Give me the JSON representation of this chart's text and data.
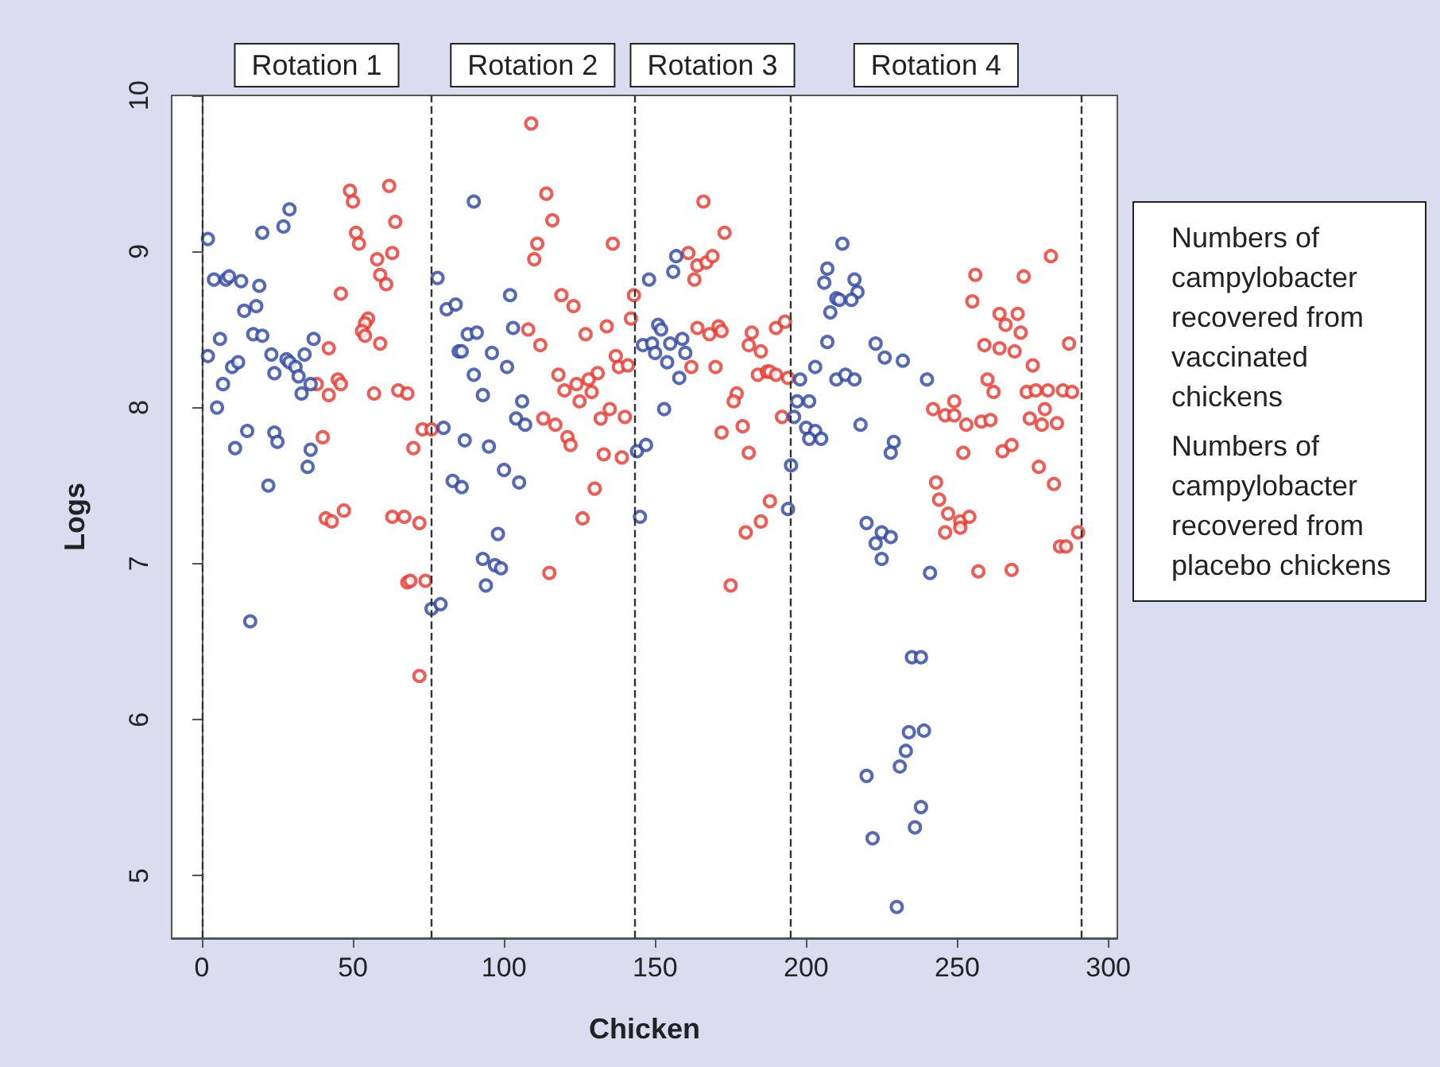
{
  "chart_data": {
    "type": "scatter",
    "xlabel": "Chicken",
    "ylabel": "Logs",
    "xlim": [
      -10,
      303
    ],
    "xticks": [
      0,
      50,
      100,
      150,
      200,
      250,
      300
    ],
    "ylim": [
      4.6,
      10
    ],
    "yticks": [
      5,
      6,
      7,
      8,
      9,
      10
    ],
    "grid": false,
    "legend": "right",
    "marker": "circle",
    "annotations": [
      "Rotation 1",
      "Rotation 2",
      "Rotation 3",
      "Rotation 4"
    ],
    "ref_lines": [
      {
        "axis": "x",
        "value": 0,
        "line_style": "dashed",
        "color": "#333333"
      },
      {
        "axis": "x",
        "value": 76,
        "line_style": "dashed",
        "color": "#333333"
      },
      {
        "axis": "x",
        "value": 143,
        "line_style": "dashed",
        "color": "#333333"
      },
      {
        "axis": "x",
        "value": 195,
        "line_style": "dashed",
        "color": "#333333"
      },
      {
        "axis": "x",
        "value": 291,
        "line_style": "dashed",
        "color": "#333333"
      }
    ],
    "series": [
      {
        "name": "Numbers of campylobacter recovered from vaccinated chickens",
        "color": "#e8352b",
        "x": [
          49,
          50,
          62,
          64,
          51,
          52,
          58,
          63,
          59,
          61,
          46,
          55,
          54,
          53,
          54,
          59,
          42,
          38,
          45,
          46,
          42,
          57,
          65,
          68,
          40,
          73,
          76,
          70,
          41,
          43,
          47,
          63,
          67,
          72,
          68,
          69,
          74,
          72,
          109,
          114,
          116,
          111,
          110,
          136,
          119,
          123,
          108,
          112,
          127,
          134,
          142,
          143,
          137,
          138,
          141,
          118,
          131,
          128,
          124,
          120,
          129,
          125,
          113,
          117,
          132,
          135,
          140,
          121,
          122,
          133,
          139,
          130,
          126,
          115,
          166,
          173,
          161,
          164,
          167,
          169,
          163,
          164,
          168,
          171,
          172,
          182,
          190,
          193,
          181,
          185,
          162,
          170,
          184,
          187,
          188,
          190,
          194,
          177,
          176,
          192,
          172,
          179,
          181,
          188,
          185,
          180,
          175,
          281,
          256,
          272,
          255,
          264,
          270,
          266,
          271,
          259,
          264,
          269,
          287,
          275,
          260,
          262,
          273,
          276,
          280,
          285,
          288,
          279,
          249,
          242,
          246,
          249,
          253,
          258,
          261,
          274,
          278,
          283,
          252,
          265,
          268,
          277,
          282,
          243,
          244,
          247,
          251,
          251,
          254,
          246,
          290,
          284,
          286,
          257,
          268
        ],
        "values": [
          9.39,
          9.32,
          9.42,
          9.19,
          9.12,
          9.05,
          8.95,
          8.99,
          8.85,
          8.79,
          8.73,
          8.57,
          8.54,
          8.49,
          8.46,
          8.41,
          8.38,
          8.15,
          8.18,
          8.15,
          8.08,
          8.09,
          8.11,
          8.09,
          7.81,
          7.86,
          7.86,
          7.74,
          7.29,
          7.27,
          7.34,
          7.3,
          7.3,
          7.26,
          6.88,
          6.89,
          6.89,
          6.28,
          9.82,
          9.37,
          9.2,
          9.05,
          8.95,
          9.05,
          8.72,
          8.65,
          8.5,
          8.4,
          8.47,
          8.52,
          8.57,
          8.72,
          8.33,
          8.26,
          8.27,
          8.21,
          8.22,
          8.18,
          8.15,
          8.11,
          8.1,
          8.04,
          7.93,
          7.89,
          7.93,
          7.99,
          7.94,
          7.81,
          7.76,
          7.7,
          7.68,
          7.48,
          7.29,
          6.94,
          9.32,
          9.12,
          8.99,
          8.91,
          8.93,
          8.97,
          8.82,
          8.51,
          8.47,
          8.52,
          8.49,
          8.48,
          8.51,
          8.55,
          8.4,
          8.36,
          8.26,
          8.26,
          8.21,
          8.23,
          8.23,
          8.21,
          8.19,
          8.09,
          8.04,
          7.94,
          7.84,
          7.88,
          7.71,
          7.4,
          7.27,
          7.2,
          6.86,
          8.97,
          8.85,
          8.84,
          8.68,
          8.6,
          8.6,
          8.53,
          8.48,
          8.4,
          8.38,
          8.36,
          8.41,
          8.27,
          8.18,
          8.1,
          8.1,
          8.11,
          8.11,
          8.11,
          8.1,
          7.99,
          8.04,
          7.99,
          7.95,
          7.95,
          7.89,
          7.91,
          7.92,
          7.93,
          7.89,
          7.9,
          7.71,
          7.72,
          7.76,
          7.62,
          7.51,
          7.52,
          7.41,
          7.32,
          7.27,
          7.23,
          7.3,
          7.2,
          7.2,
          7.11,
          7.11,
          6.95,
          6.96
        ]
      },
      {
        "name": "Numbers of campylobacter recovered from placebo chickens",
        "color": "#2a44a3",
        "x": [
          2,
          20,
          27,
          29,
          4,
          8,
          9,
          13,
          19,
          14,
          18,
          6,
          2,
          17,
          20,
          23,
          10,
          12,
          7,
          24,
          28,
          29,
          31,
          32,
          34,
          37,
          36,
          33,
          5,
          15,
          24,
          25,
          11,
          36,
          35,
          22,
          16,
          90,
          78,
          81,
          84,
          102,
          88,
          91,
          103,
          85,
          86,
          96,
          101,
          90,
          93,
          106,
          104,
          107,
          80,
          87,
          95,
          100,
          105,
          83,
          86,
          98,
          93,
          97,
          99,
          94,
          76,
          79,
          148,
          156,
          157,
          151,
          152,
          146,
          149,
          150,
          155,
          159,
          160,
          154,
          158,
          153,
          144,
          147,
          145,
          212,
          207,
          206,
          216,
          217,
          210,
          211,
          215,
          208,
          207,
          223,
          226,
          232,
          203,
          198,
          210,
          213,
          216,
          240,
          197,
          201,
          196,
          200,
          203,
          201,
          205,
          218,
          229,
          228,
          195,
          194,
          220,
          225,
          228,
          223,
          225,
          241,
          235,
          238,
          234,
          239,
          233,
          231,
          220,
          238,
          236,
          222,
          230
        ],
        "values": [
          9.08,
          9.12,
          9.16,
          9.27,
          8.82,
          8.82,
          8.84,
          8.81,
          8.78,
          8.62,
          8.65,
          8.44,
          8.33,
          8.47,
          8.46,
          8.34,
          8.26,
          8.29,
          8.15,
          8.22,
          8.31,
          8.29,
          8.26,
          8.2,
          8.34,
          8.44,
          8.15,
          8.09,
          8.0,
          7.85,
          7.84,
          7.78,
          7.74,
          7.73,
          7.62,
          7.5,
          6.63,
          9.32,
          8.83,
          8.63,
          8.66,
          8.72,
          8.47,
          8.48,
          8.51,
          8.36,
          8.36,
          8.35,
          8.26,
          8.21,
          8.08,
          8.04,
          7.93,
          7.89,
          7.87,
          7.79,
          7.75,
          7.6,
          7.52,
          7.53,
          7.49,
          7.19,
          7.03,
          6.99,
          6.97,
          6.86,
          6.71,
          6.74,
          8.82,
          8.87,
          8.97,
          8.53,
          8.5,
          8.4,
          8.41,
          8.35,
          8.41,
          8.44,
          8.35,
          8.29,
          8.19,
          7.99,
          7.72,
          7.76,
          7.3,
          9.05,
          8.89,
          8.8,
          8.82,
          8.74,
          8.7,
          8.69,
          8.69,
          8.61,
          8.42,
          8.41,
          8.32,
          8.3,
          8.26,
          8.18,
          8.18,
          8.21,
          8.18,
          8.18,
          8.04,
          8.04,
          7.94,
          7.87,
          7.85,
          7.8,
          7.8,
          7.89,
          7.78,
          7.71,
          7.63,
          7.35,
          7.26,
          7.2,
          7.17,
          7.13,
          7.03,
          6.94,
          6.4,
          6.4,
          5.92,
          5.93,
          5.8,
          5.7,
          5.64,
          5.44,
          5.31,
          5.24,
          4.8
        ]
      }
    ]
  }
}
